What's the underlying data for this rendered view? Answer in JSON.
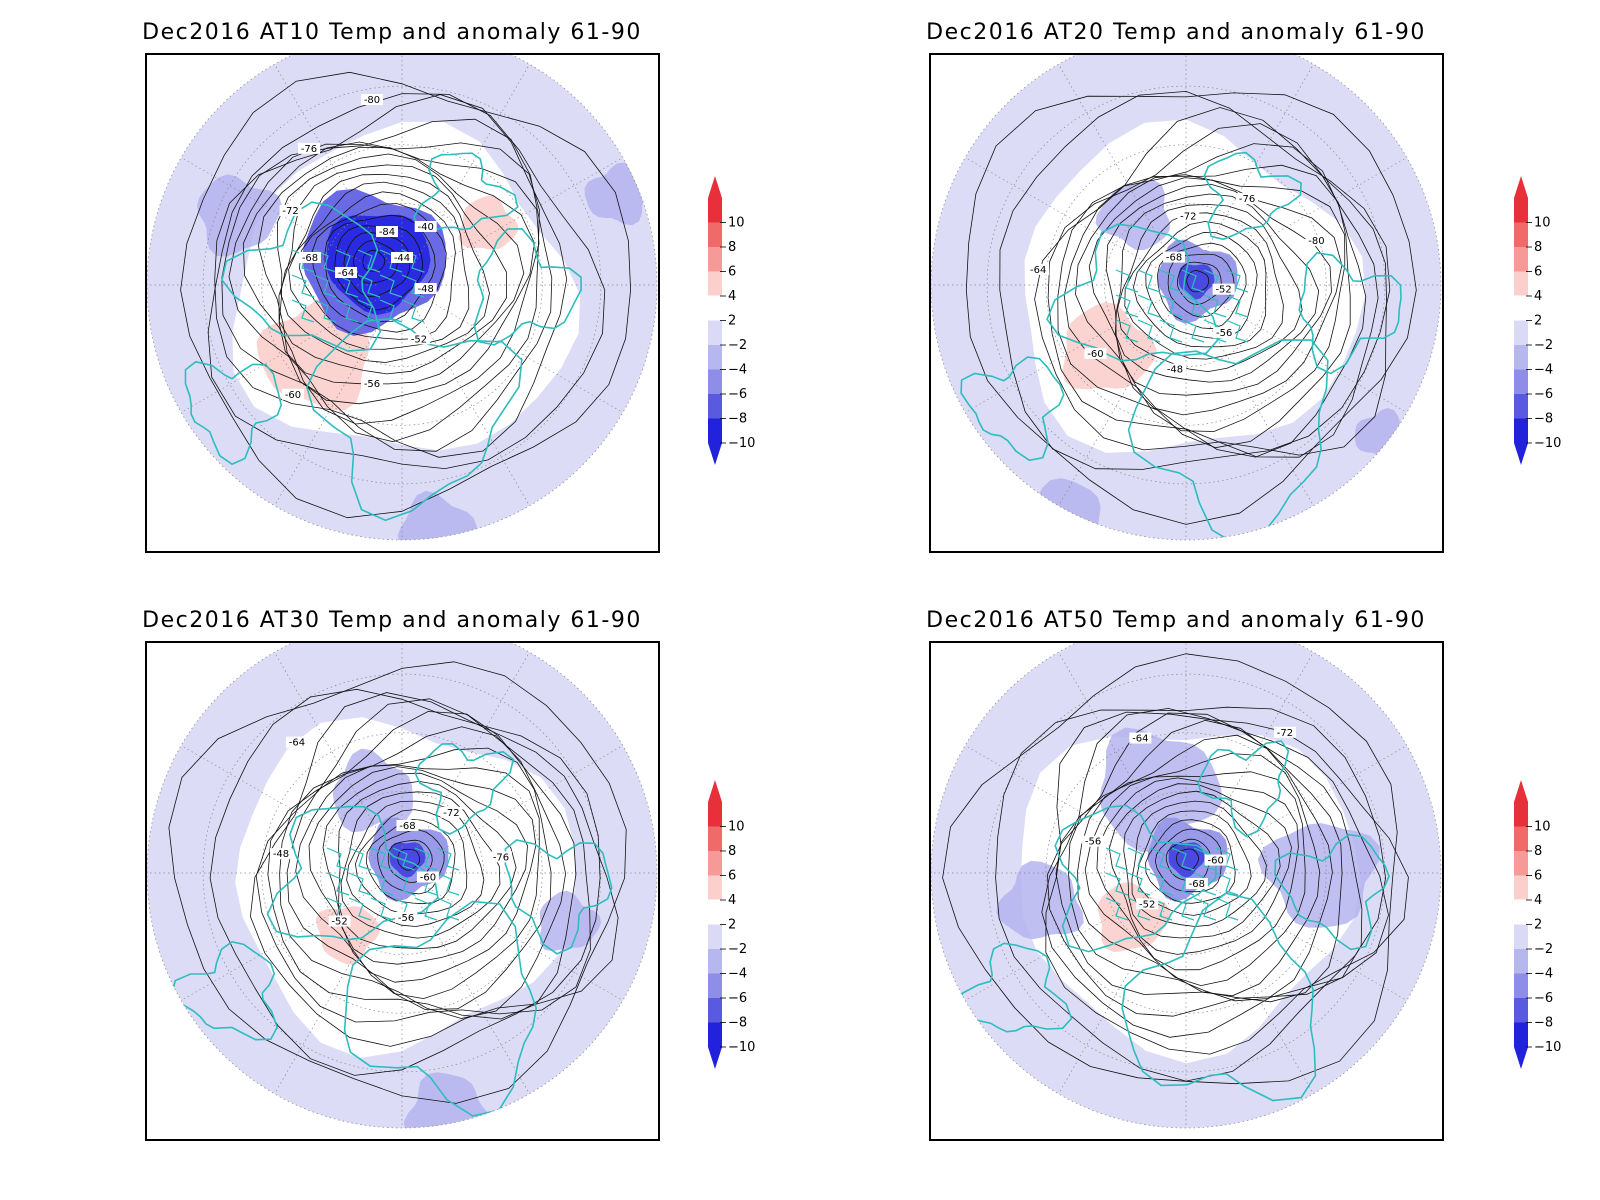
{
  "colorbar": {
    "labels": [
      "10",
      "8",
      "6",
      "4",
      "2",
      "−2",
      "−4",
      "−6",
      "−8",
      "−10"
    ],
    "colors": [
      "#e8303a",
      "#f06a6a",
      "#f59a96",
      "#fbd0cc",
      "#ffffff",
      "#dadaf6",
      "#b7b7ef",
      "#8e8ee8",
      "#5a5ae0",
      "#2222dd"
    ],
    "top_arrow_color": "#e8303a",
    "bottom_arrow_color": "#2222dd"
  },
  "colors": {
    "coastline": "#2ebdbd",
    "contour": "#111111",
    "anomaly_pale_blue": "#dcdcf7",
    "anomaly_mid_blue": "#b4b4ee",
    "anomaly_deep_blue": "#2a2ae0",
    "anomaly_pink": "#fbd4d2"
  },
  "panels": [
    {
      "id": "at10",
      "title": "Dec2016 AT10 Temp and anomaly 61-90",
      "contour_labels": [
        "-44",
        "-48",
        "-52",
        "-56",
        "-60",
        "-64",
        "-68",
        "-72",
        "-76",
        "-80",
        "-84",
        "-40"
      ]
    },
    {
      "id": "at20",
      "title": "Dec2016 AT20 Temp and anomaly 61-90",
      "contour_labels": [
        "-52",
        "-56",
        "-48",
        "-60",
        "-64",
        "-68",
        "-72",
        "-76",
        "-80"
      ]
    },
    {
      "id": "at30",
      "title": "Dec2016 AT30 Temp and anomaly 61-90",
      "contour_labels": [
        "-60",
        "-56",
        "-52",
        "-48",
        "-64",
        "-68",
        "-72",
        "-76"
      ]
    },
    {
      "id": "at50",
      "title": "Dec2016 AT50 Temp and anomaly 61-90",
      "contour_labels": [
        "-68",
        "-52",
        "-56",
        "-64",
        "-72",
        "-60"
      ]
    }
  ]
}
